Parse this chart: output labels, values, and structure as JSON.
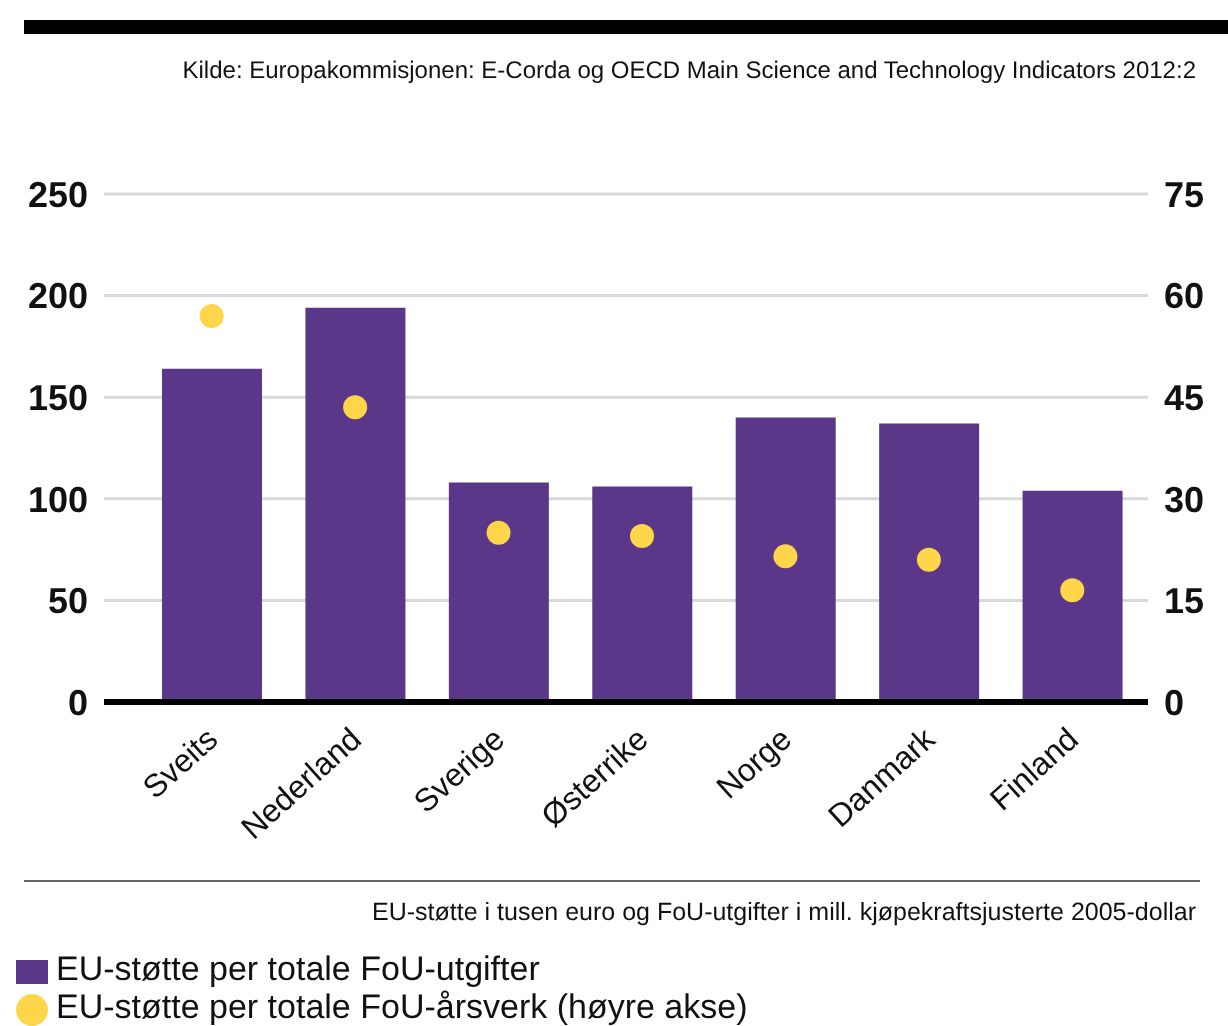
{
  "chart_data": {
    "type": "bar",
    "annotations": [
      "Kilde: Europakommisjonen: E-Corda og OECD Main Science and Technology Indicators 2012:2",
      "EU-støtte i tusen euro og FoU-utgifter i mill. kjøpekraftsjusterte 2005-dollar"
    ],
    "categories": [
      "Sveits",
      "Nederland",
      "Sverige",
      "Østerrike",
      "Norge",
      "Danmark",
      "Finland"
    ],
    "series": [
      {
        "name": "EU-støtte per totale FoU-utgifter",
        "color": "#5b3789",
        "values": [
          164,
          194,
          108,
          106,
          140,
          137,
          104
        ]
      },
      {
        "name": "EU-støtte per totale FoU-årsverk (høyre akse)",
        "type": "scatter",
        "axis": "y2",
        "color": "#ffd54a",
        "values": [
          57,
          43.5,
          25,
          24.5,
          21.5,
          21,
          16.5
        ]
      }
    ],
    "ylim": [
      0,
      250
    ],
    "yticks": [
      0,
      50,
      100,
      150,
      200,
      250
    ],
    "y2lim": [
      0,
      75
    ],
    "y2ticks": [
      0,
      15,
      30,
      45,
      60,
      75
    ],
    "grid": "y",
    "legend": "bottom left",
    "marker": "circle"
  }
}
